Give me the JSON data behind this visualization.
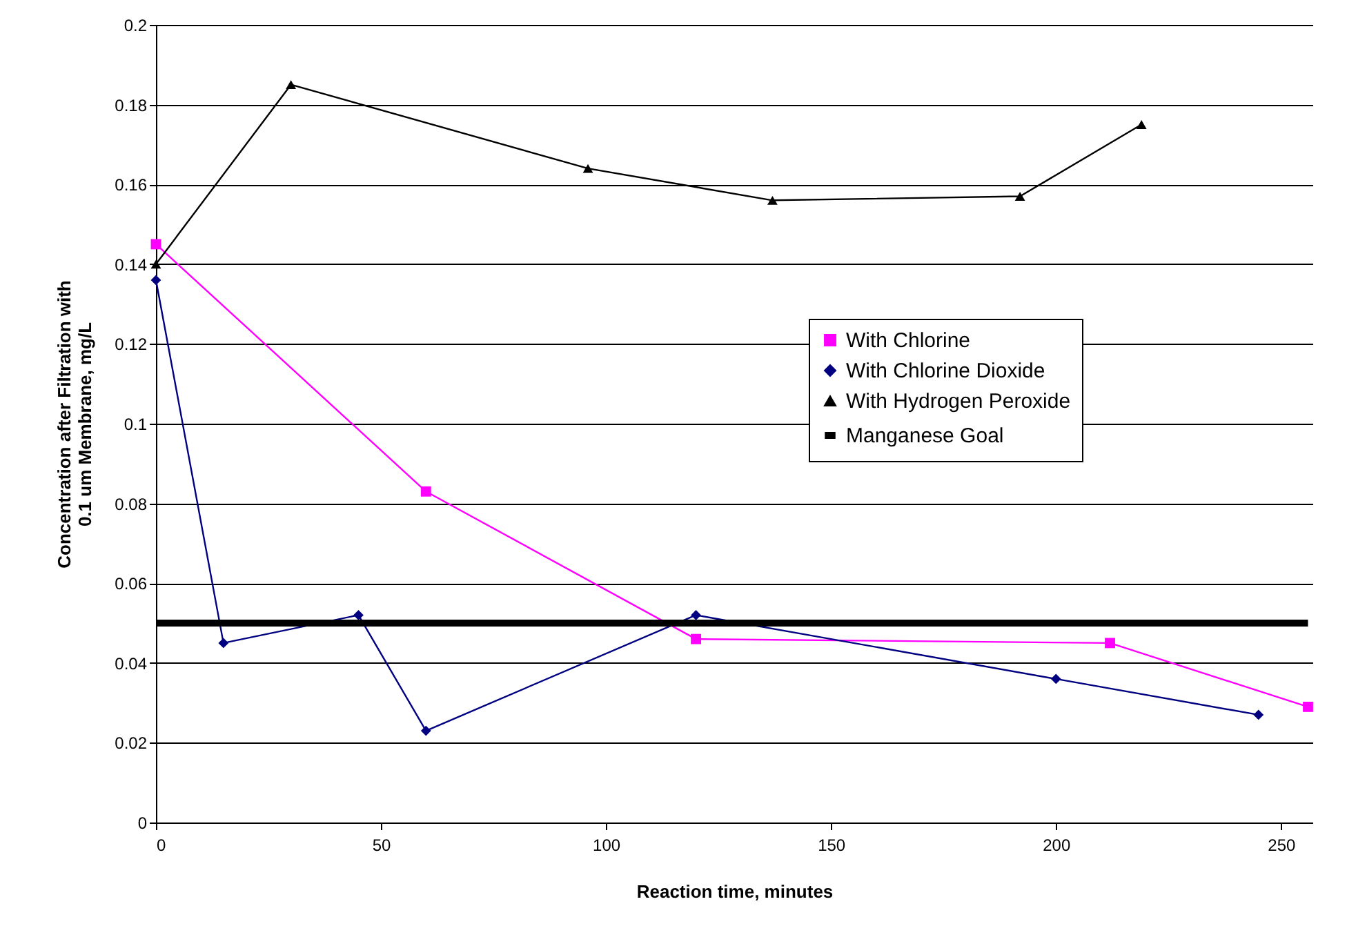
{
  "chart_data": {
    "type": "line",
    "xlabel": "Reaction time, minutes",
    "ylabel": "Concentration after Filtration with\n0.1 um Membrane, mg/L",
    "xlim": [
      0,
      257
    ],
    "xticks": [
      0,
      50,
      100,
      150,
      200,
      250
    ],
    "ylim": [
      0,
      0.2
    ],
    "yticks": [
      0,
      0.02,
      0.04,
      0.06,
      0.08,
      0.1,
      0.12,
      0.14,
      0.16,
      0.18,
      0.2
    ],
    "grid": "y",
    "legend": "right",
    "line_style": "solid",
    "series": [
      {
        "name": "With Chlorine",
        "color": "#ff00ff",
        "marker": "square",
        "x": [
          0,
          60,
          120,
          212,
          256
        ],
        "values": [
          0.145,
          0.083,
          0.046,
          0.045,
          0.029
        ]
      },
      {
        "name": "With Chlorine Dioxide",
        "color": "#000080",
        "marker": "diamond",
        "x": [
          0,
          15,
          45,
          60,
          120,
          200,
          245
        ],
        "values": [
          0.136,
          0.045,
          0.052,
          0.023,
          0.052,
          0.036,
          0.027
        ]
      },
      {
        "name": "With Hydrogen Peroxide",
        "color": "#000000",
        "marker": "triangle",
        "x": [
          0,
          30,
          96,
          137,
          192,
          219
        ],
        "values": [
          0.14,
          0.185,
          0.164,
          0.156,
          0.157,
          0.175
        ]
      },
      {
        "name": "Manganese Goal",
        "color": "#000000",
        "marker": "none",
        "x": [
          0,
          256
        ],
        "values": [
          0.05,
          0.05
        ]
      }
    ]
  }
}
